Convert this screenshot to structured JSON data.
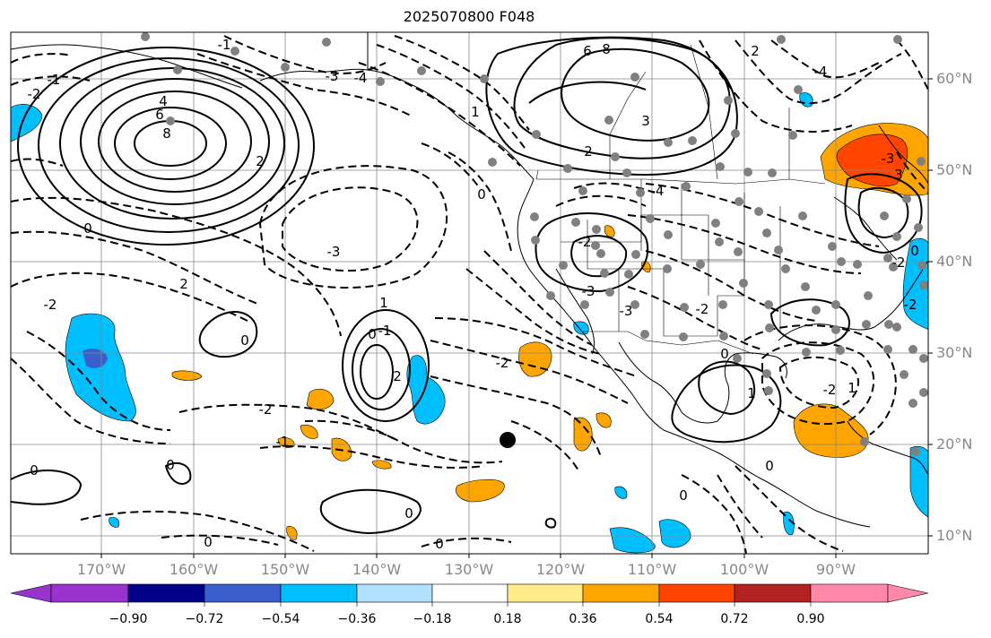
{
  "title": "2025070800 F048",
  "lat_labels": [
    "60°N",
    "50°N",
    "40°N",
    "30°N",
    "20°N",
    "10°N"
  ],
  "lon_labels": [
    "170°W",
    "160°W",
    "150°W",
    "140°W",
    "130°W",
    "120°W",
    "110°W",
    "100°W",
    "90°W"
  ],
  "colorbar": {
    "colors": [
      "#9a32cd",
      "#00008b",
      "#3a5fcd",
      "#00bfff",
      "#b0e2ff",
      "#ffffff",
      "#ffec8b",
      "#ffa500",
      "#ff4500",
      "#b22222",
      "#ff88aa"
    ],
    "tick_labels": [
      "−0.90",
      "−0.72",
      "−0.54",
      "−0.36",
      "−0.18",
      "0.18",
      "0.36",
      "0.54",
      "0.72",
      "0.90"
    ],
    "extend": "both"
  },
  "contour_labels": [
    "8",
    "6",
    "4",
    "2",
    "0",
    "-1",
    "-2",
    "-3",
    "-4",
    "6",
    "8",
    "3",
    "2",
    "0",
    "1",
    "-2",
    "-3",
    "-4",
    "0",
    "2",
    "1",
    "-1",
    "0",
    "-2",
    "2",
    "-2",
    "1",
    "0",
    "0",
    "0",
    "0",
    "-1",
    "-2",
    "0",
    "-3",
    "0",
    "-2",
    "-3",
    "-1",
    "-2",
    "1",
    "-2",
    "-3",
    "3",
    "2",
    "-4",
    "0",
    "-2",
    "0",
    "0"
  ],
  "colors": {
    "frame": "#000000",
    "grid": "#888888",
    "axis_label": "#888888",
    "station": "#808080"
  }
}
